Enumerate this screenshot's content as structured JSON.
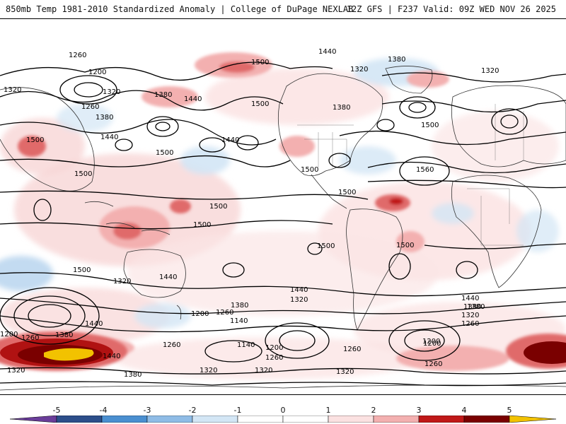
{
  "header": {
    "title": "850mb Temp 1981-2010 Standardized Anomaly | College of DuPage NEXLAB",
    "run_info": "12Z GFS | F237 Valid: 09Z WED NOV 26 2025"
  },
  "colorbar": {
    "ticks": [
      "-5",
      "-4",
      "-3",
      "-2",
      "-1",
      "0",
      "1",
      "2",
      "3",
      "4",
      "5"
    ],
    "colors": [
      "#6a3d9a",
      "#2c4e8a",
      "#4a8fd0",
      "#8fbce6",
      "#d3e6f5",
      "#ffffff",
      "#fbe1e1",
      "#f3b0b0",
      "#e06a6a",
      "#c01818",
      "#7a0000",
      "#f2c200"
    ]
  },
  "contour_labels": [
    "1260",
    "1200",
    "1320",
    "1260",
    "1380",
    "1440",
    "1500",
    "1320",
    "1380",
    "1440",
    "1500",
    "1500",
    "1440",
    "1500",
    "1440",
    "1380",
    "1500",
    "1560",
    "1500",
    "1320",
    "1380",
    "1320",
    "1500",
    "1500",
    "1500",
    "1500",
    "1500",
    "1500",
    "1440",
    "1320",
    "1500",
    "1440",
    "1380",
    "1320",
    "1200",
    "1260",
    "1140",
    "1200",
    "1260",
    "1320",
    "1440",
    "1200",
    "1260",
    "1380",
    "1440",
    "1380",
    "1320",
    "1260",
    "1140",
    "1200",
    "1260",
    "1320",
    "1440",
    "1380",
    "1320",
    "1260",
    "1200",
    "1260",
    "1320",
    "1380"
  ]
}
